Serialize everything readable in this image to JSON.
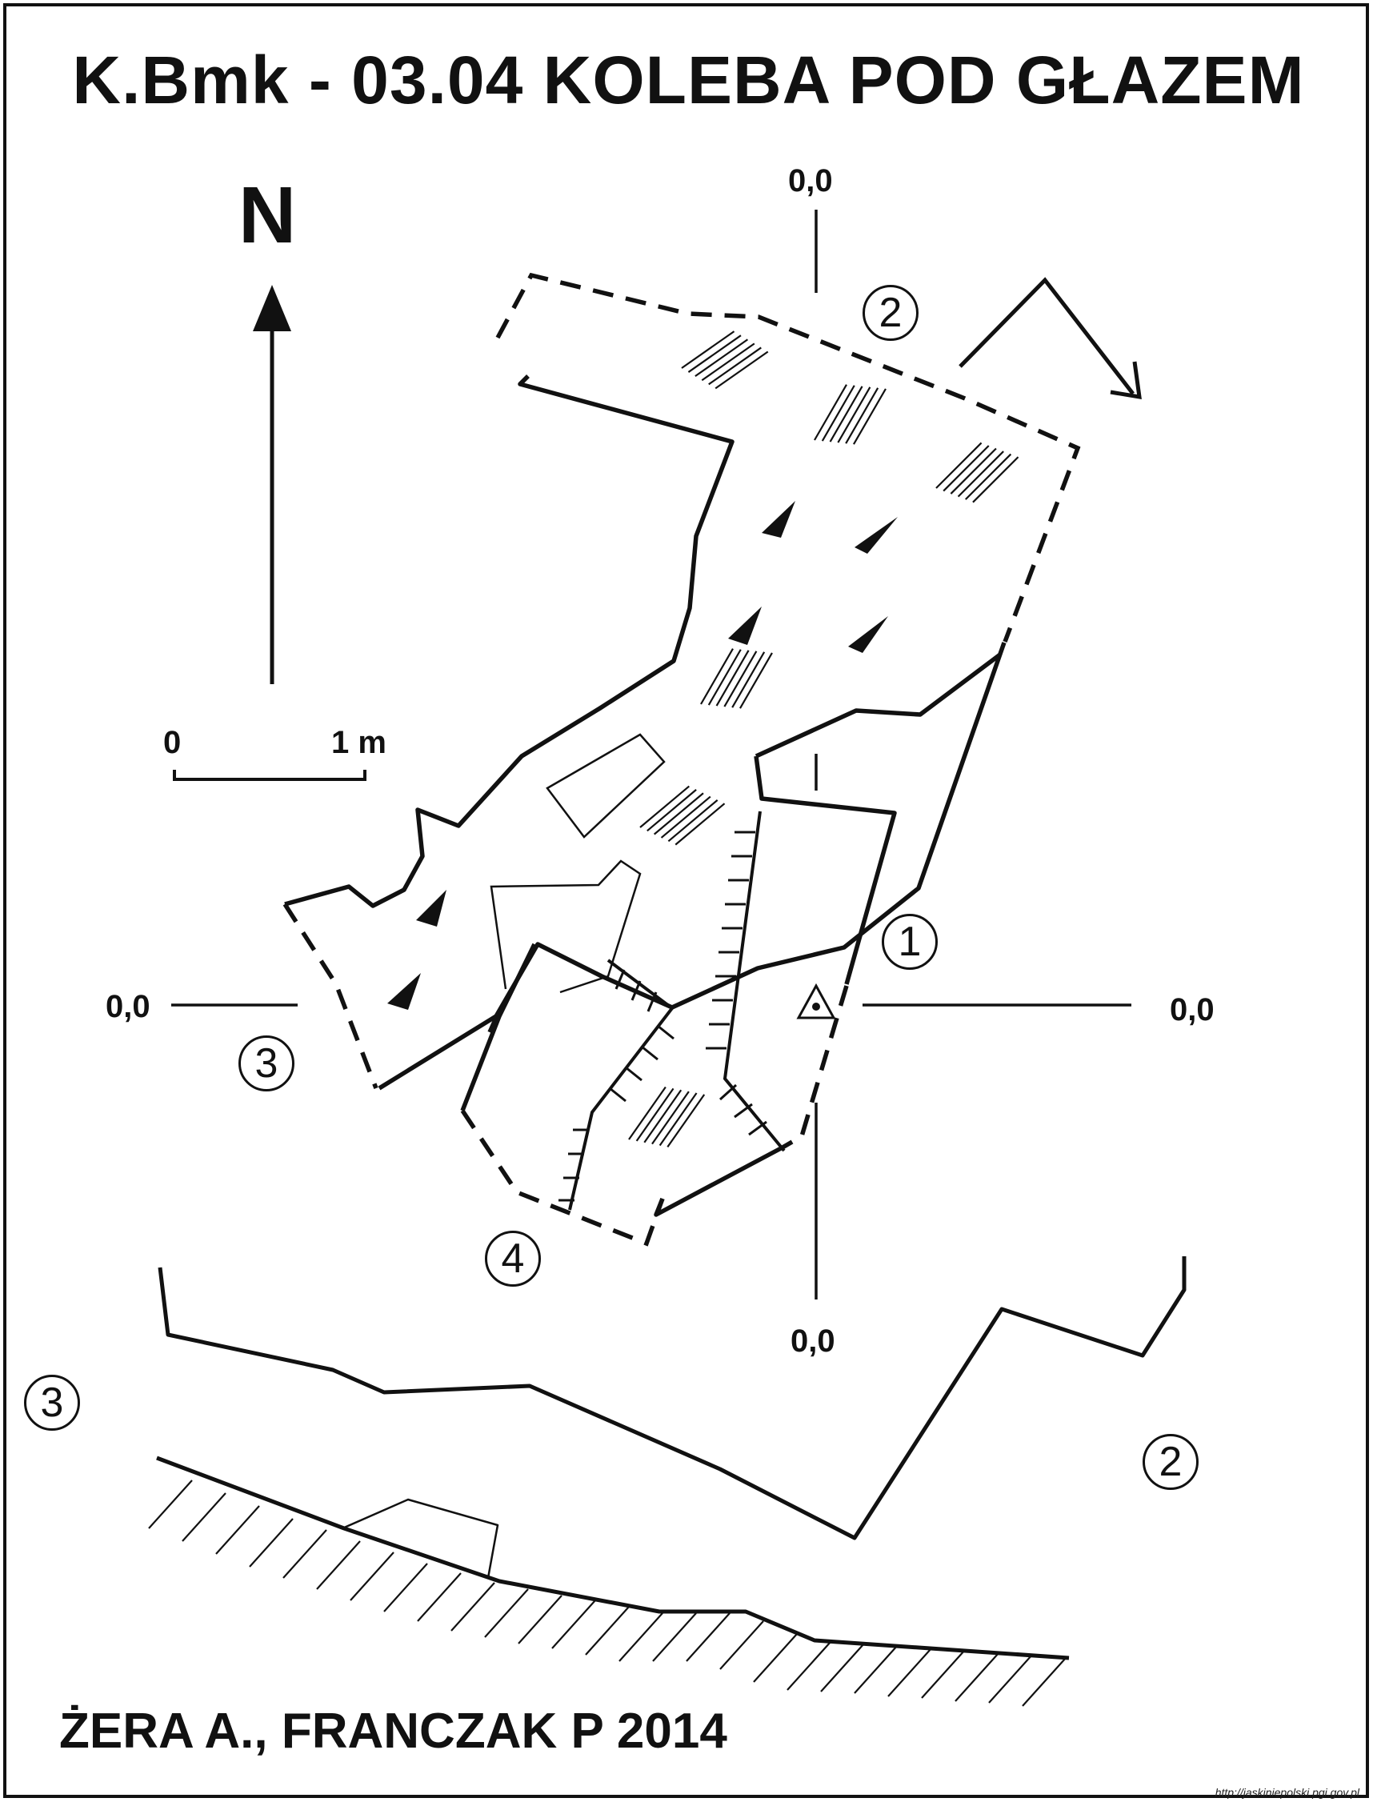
{
  "title": "K.Bmk - 03.04  KOLEBA POD GŁAZEM",
  "north_label": "N",
  "scale": {
    "zero": "0",
    "length": "1 m"
  },
  "section_labels": {
    "top": "0,0",
    "bottom": "0,0",
    "left": "0,0",
    "right": "0,0"
  },
  "section_markers": [
    "1",
    "2",
    "3",
    "4",
    "3",
    "2"
  ],
  "authors": "ŻERA A., FRANCZAK P 2014",
  "source_url": "http://jaskiniepolski.pgi.gov.pl",
  "colors": {
    "ink": "#111111",
    "paper": "#ffffff"
  }
}
